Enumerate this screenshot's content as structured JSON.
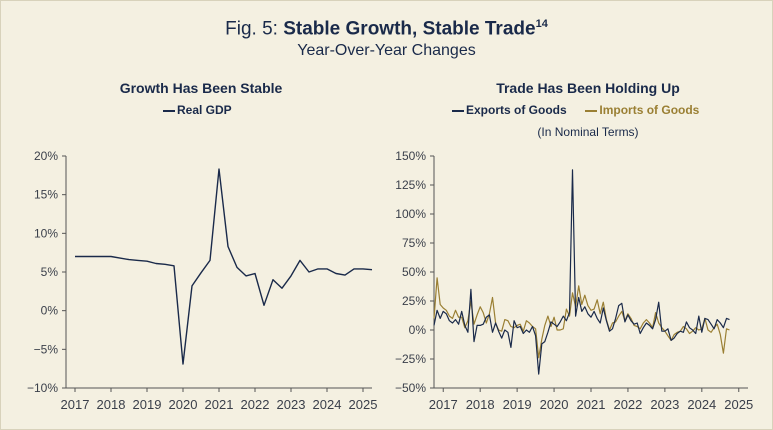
{
  "figure": {
    "prefix": "Fig. 5: ",
    "title": "Stable Growth, Stable Trade",
    "superscript": "14",
    "subtitle": "Year-Over-Year Changes"
  },
  "colors": {
    "navy": "#1a2a4a",
    "gold": "#9a7f33",
    "background": "#f4f0e1"
  },
  "chart_data": [
    {
      "type": "line",
      "title": "Growth Has Been Stable",
      "legend": [
        "Real GDP"
      ],
      "xlabel": "",
      "ylabel": "",
      "ylim": [
        -10,
        20
      ],
      "xlim": [
        2016.75,
        2025.25
      ],
      "y_ticks": [
        -10,
        -5,
        0,
        5,
        10,
        15,
        20
      ],
      "y_tick_labels": [
        "−10%",
        "−5%",
        "0%",
        "5%",
        "10%",
        "15%",
        "20%"
      ],
      "x_ticks": [
        2017,
        2018,
        2019,
        2020,
        2021,
        2022,
        2023,
        2024,
        2025
      ],
      "x_tick_labels": [
        "2017",
        "2018",
        "2019",
        "2020",
        "2021",
        "2022",
        "2023",
        "2024",
        "2025"
      ],
      "series": [
        {
          "name": "Real GDP",
          "color": "#1a2a4a",
          "x": [
            2017.0,
            2017.25,
            2017.5,
            2017.75,
            2018.0,
            2018.25,
            2018.5,
            2018.75,
            2019.0,
            2019.25,
            2019.5,
            2019.75,
            2020.0,
            2020.25,
            2020.5,
            2020.75,
            2021.0,
            2021.25,
            2021.5,
            2021.75,
            2022.0,
            2022.25,
            2022.5,
            2022.75,
            2023.0,
            2023.25,
            2023.5,
            2023.75,
            2024.0,
            2024.25,
            2024.5,
            2024.75,
            2025.0,
            2025.25
          ],
          "values": [
            7.0,
            7.0,
            7.0,
            7.0,
            7.0,
            6.8,
            6.6,
            6.5,
            6.4,
            6.1,
            6.0,
            5.8,
            -6.9,
            3.2,
            4.9,
            6.5,
            18.3,
            8.3,
            5.6,
            4.5,
            4.8,
            0.7,
            4.0,
            2.9,
            4.5,
            6.5,
            5.0,
            5.4,
            5.4,
            4.8,
            4.6,
            5.4,
            5.4,
            5.3
          ]
        }
      ]
    },
    {
      "type": "line",
      "title": "Trade Has Been Holding Up",
      "subtitle": "(In Nominal Terms)",
      "legend": [
        "Exports of Goods",
        "Imports of Goods"
      ],
      "xlabel": "",
      "ylabel": "",
      "ylim": [
        -50,
        150
      ],
      "xlim": [
        2016.75,
        2025.25
      ],
      "y_ticks": [
        -50,
        -25,
        0,
        25,
        50,
        75,
        100,
        125,
        150
      ],
      "y_tick_labels": [
        "−50%",
        "−25%",
        "0%",
        "25%",
        "50%",
        "75%",
        "100%",
        "125%",
        "150%"
      ],
      "x_ticks": [
        2017,
        2018,
        2019,
        2020,
        2021,
        2022,
        2023,
        2024,
        2025
      ],
      "x_tick_labels": [
        "2017",
        "2018",
        "2019",
        "2020",
        "2021",
        "2022",
        "2023",
        "2024",
        "2025"
      ],
      "series": [
        {
          "name": "Exports of Goods",
          "color": "#1a2a4a",
          "x": [
            2016.75,
            2016.833,
            2016.917,
            2017.0,
            2017.083,
            2017.167,
            2017.25,
            2017.333,
            2017.417,
            2017.5,
            2017.583,
            2017.667,
            2017.75,
            2017.833,
            2017.917,
            2018.0,
            2018.083,
            2018.167,
            2018.25,
            2018.333,
            2018.417,
            2018.5,
            2018.583,
            2018.667,
            2018.75,
            2018.833,
            2018.917,
            2019.0,
            2019.083,
            2019.167,
            2019.25,
            2019.333,
            2019.417,
            2019.5,
            2019.583,
            2019.667,
            2019.75,
            2019.833,
            2019.917,
            2020.0,
            2020.083,
            2020.167,
            2020.25,
            2020.333,
            2020.417,
            2020.5,
            2020.583,
            2020.667,
            2020.75,
            2020.833,
            2020.917,
            2021.0,
            2021.083,
            2021.167,
            2021.25,
            2021.333,
            2021.417,
            2021.5,
            2021.583,
            2021.667,
            2021.75,
            2021.833,
            2021.917,
            2022.0,
            2022.083,
            2022.167,
            2022.25,
            2022.333,
            2022.417,
            2022.5,
            2022.583,
            2022.667,
            2022.75,
            2022.833,
            2022.917,
            2023.0,
            2023.083,
            2023.167,
            2023.25,
            2023.333,
            2023.417,
            2023.5,
            2023.583,
            2023.667,
            2023.75,
            2023.833,
            2023.917,
            2024.0,
            2024.083,
            2024.167,
            2024.25,
            2024.333,
            2024.417,
            2024.5,
            2024.583,
            2024.667,
            2024.75
          ],
          "values": [
            4,
            17,
            10,
            16,
            14,
            8,
            6,
            9,
            5,
            16,
            4,
            -2,
            35,
            -10,
            4,
            4,
            5,
            11,
            13,
            -2,
            6,
            -1,
            -7,
            0,
            -2,
            -15,
            8,
            2,
            3,
            -3,
            0,
            -2,
            3,
            -5,
            -38,
            -12,
            -10,
            -2,
            7,
            5,
            3,
            7,
            12,
            8,
            15,
            138,
            12,
            28,
            16,
            20,
            14,
            11,
            16,
            10,
            6,
            19,
            8,
            -1,
            1,
            10,
            21,
            23,
            7,
            13,
            8,
            5,
            6,
            -3,
            2,
            6,
            4,
            1,
            9,
            24,
            -1,
            -1,
            1,
            -9,
            -7,
            -3,
            -1,
            -2,
            7,
            2,
            0,
            -3,
            12,
            -2,
            10,
            9,
            5,
            1,
            9,
            6,
            2,
            10,
            9
          ]
        },
        {
          "name": "Imports of Goods",
          "color": "#9a7f33",
          "x": [
            2016.75,
            2016.833,
            2016.917,
            2017.0,
            2017.083,
            2017.167,
            2017.25,
            2017.333,
            2017.417,
            2017.5,
            2017.583,
            2017.667,
            2017.75,
            2017.833,
            2017.917,
            2018.0,
            2018.083,
            2018.167,
            2018.25,
            2018.333,
            2018.417,
            2018.5,
            2018.583,
            2018.667,
            2018.75,
            2018.833,
            2018.917,
            2019.0,
            2019.083,
            2019.167,
            2019.25,
            2019.333,
            2019.417,
            2019.5,
            2019.583,
            2019.667,
            2019.75,
            2019.833,
            2019.917,
            2020.0,
            2020.083,
            2020.167,
            2020.25,
            2020.333,
            2020.417,
            2020.5,
            2020.583,
            2020.667,
            2020.75,
            2020.833,
            2020.917,
            2021.0,
            2021.083,
            2021.167,
            2021.25,
            2021.333,
            2021.417,
            2021.5,
            2021.583,
            2021.667,
            2021.75,
            2021.833,
            2021.917,
            2022.0,
            2022.083,
            2022.167,
            2022.25,
            2022.333,
            2022.417,
            2022.5,
            2022.583,
            2022.667,
            2022.75,
            2022.833,
            2022.917,
            2023.0,
            2023.083,
            2023.167,
            2023.25,
            2023.333,
            2023.417,
            2023.5,
            2023.583,
            2023.667,
            2023.75,
            2023.833,
            2023.917,
            2024.0,
            2024.083,
            2024.167,
            2024.25,
            2024.333,
            2024.417,
            2024.5,
            2024.583,
            2024.667,
            2024.75
          ],
          "values": [
            10,
            45,
            22,
            19,
            17,
            12,
            10,
            17,
            11,
            11,
            2,
            8,
            25,
            5,
            13,
            20,
            15,
            6,
            14,
            28,
            6,
            0,
            -1,
            9,
            8,
            3,
            2,
            4,
            5,
            -1,
            8,
            6,
            3,
            1,
            -24,
            -8,
            4,
            12,
            3,
            11,
            0,
            0,
            1,
            18,
            12,
            32,
            20,
            38,
            22,
            30,
            21,
            17,
            18,
            26,
            14,
            24,
            9,
            0,
            6,
            7,
            12,
            16,
            8,
            14,
            10,
            4,
            3,
            1,
            6,
            9,
            6,
            2,
            15,
            6,
            2,
            -1,
            -5,
            -9,
            -4,
            -2,
            -1,
            3,
            1,
            -3,
            -1,
            2,
            0,
            1,
            10,
            0,
            -2,
            2,
            5,
            -4,
            -20,
            1,
            0
          ]
        }
      ]
    }
  ]
}
